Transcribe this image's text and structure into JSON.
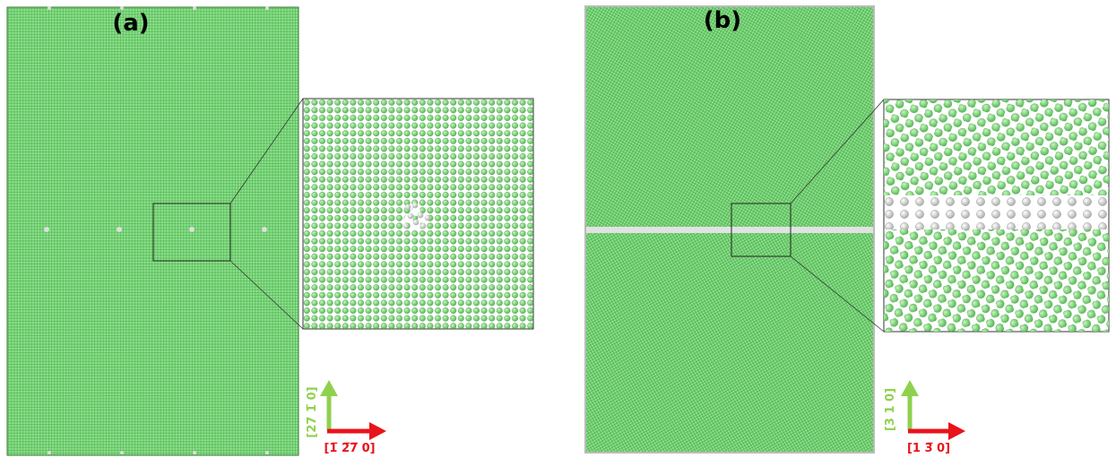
{
  "panels": [
    {
      "label": "(a)",
      "vertical_direction": "[27 1̅ 0]",
      "horizontal_direction": "[1̅ 2̅7̅ 0]"
    },
    {
      "label": "(b)",
      "vertical_direction": "[3 1 0]",
      "horizontal_direction": "[1 3̅ 0]"
    }
  ]
}
